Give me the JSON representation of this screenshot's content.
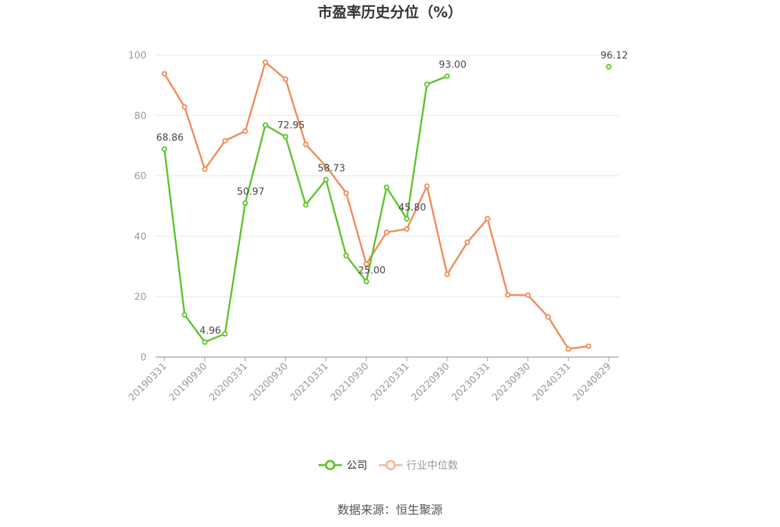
{
  "chart_data": {
    "type": "line",
    "title": "市盈率历史分位（%）",
    "ylim": [
      0,
      100
    ],
    "yticks": [
      0,
      20,
      40,
      60,
      80,
      100
    ],
    "grid": true,
    "legend_position": "bottom",
    "x": [
      "20190331",
      "20190630",
      "20190930",
      "20191231",
      "20200331",
      "20200630",
      "20200930",
      "20201231",
      "20210331",
      "20210630",
      "20210930",
      "20211231",
      "20220331",
      "20220630",
      "20220930",
      "20221231",
      "20230331",
      "20230630",
      "20230930",
      "20231231",
      "20240331",
      "20240630",
      "20240829"
    ],
    "x_tick_labels": [
      "20190331",
      "20190930",
      "20200331",
      "20200930",
      "20210331",
      "20210930",
      "20220331",
      "20220930",
      "20230331",
      "20230930",
      "20240331",
      "20240829"
    ],
    "series": [
      {
        "name": "公司",
        "color": "#5cc42a",
        "values": [
          68.86,
          14.0,
          4.96,
          7.7,
          50.97,
          76.8,
          72.95,
          50.4,
          58.73,
          33.6,
          25.0,
          56.2,
          45.8,
          90.3,
          93.0,
          null,
          null,
          null,
          null,
          null,
          null,
          null,
          96.12
        ],
        "labels": {
          "0": "68.86",
          "2": "4.96",
          "4": "50.97",
          "6": "72.95",
          "8": "58.73",
          "10": "25.00",
          "12": "45.80",
          "14": "93.00",
          "22": "96.12"
        }
      },
      {
        "name": "行业中位数",
        "color": "#f28a56",
        "values": [
          93.8,
          82.8,
          62.2,
          71.6,
          74.8,
          97.6,
          92.0,
          70.4,
          63.2,
          54.3,
          30.8,
          41.3,
          42.4,
          56.6,
          27.4,
          38.0,
          45.8,
          20.6,
          20.5,
          13.3,
          2.7,
          3.6,
          null
        ],
        "labels": {}
      }
    ]
  },
  "legend": {
    "company": "公司",
    "industry": "行业中位数",
    "inactive_color": "#999999"
  },
  "source": "数据来源：恒生聚源"
}
